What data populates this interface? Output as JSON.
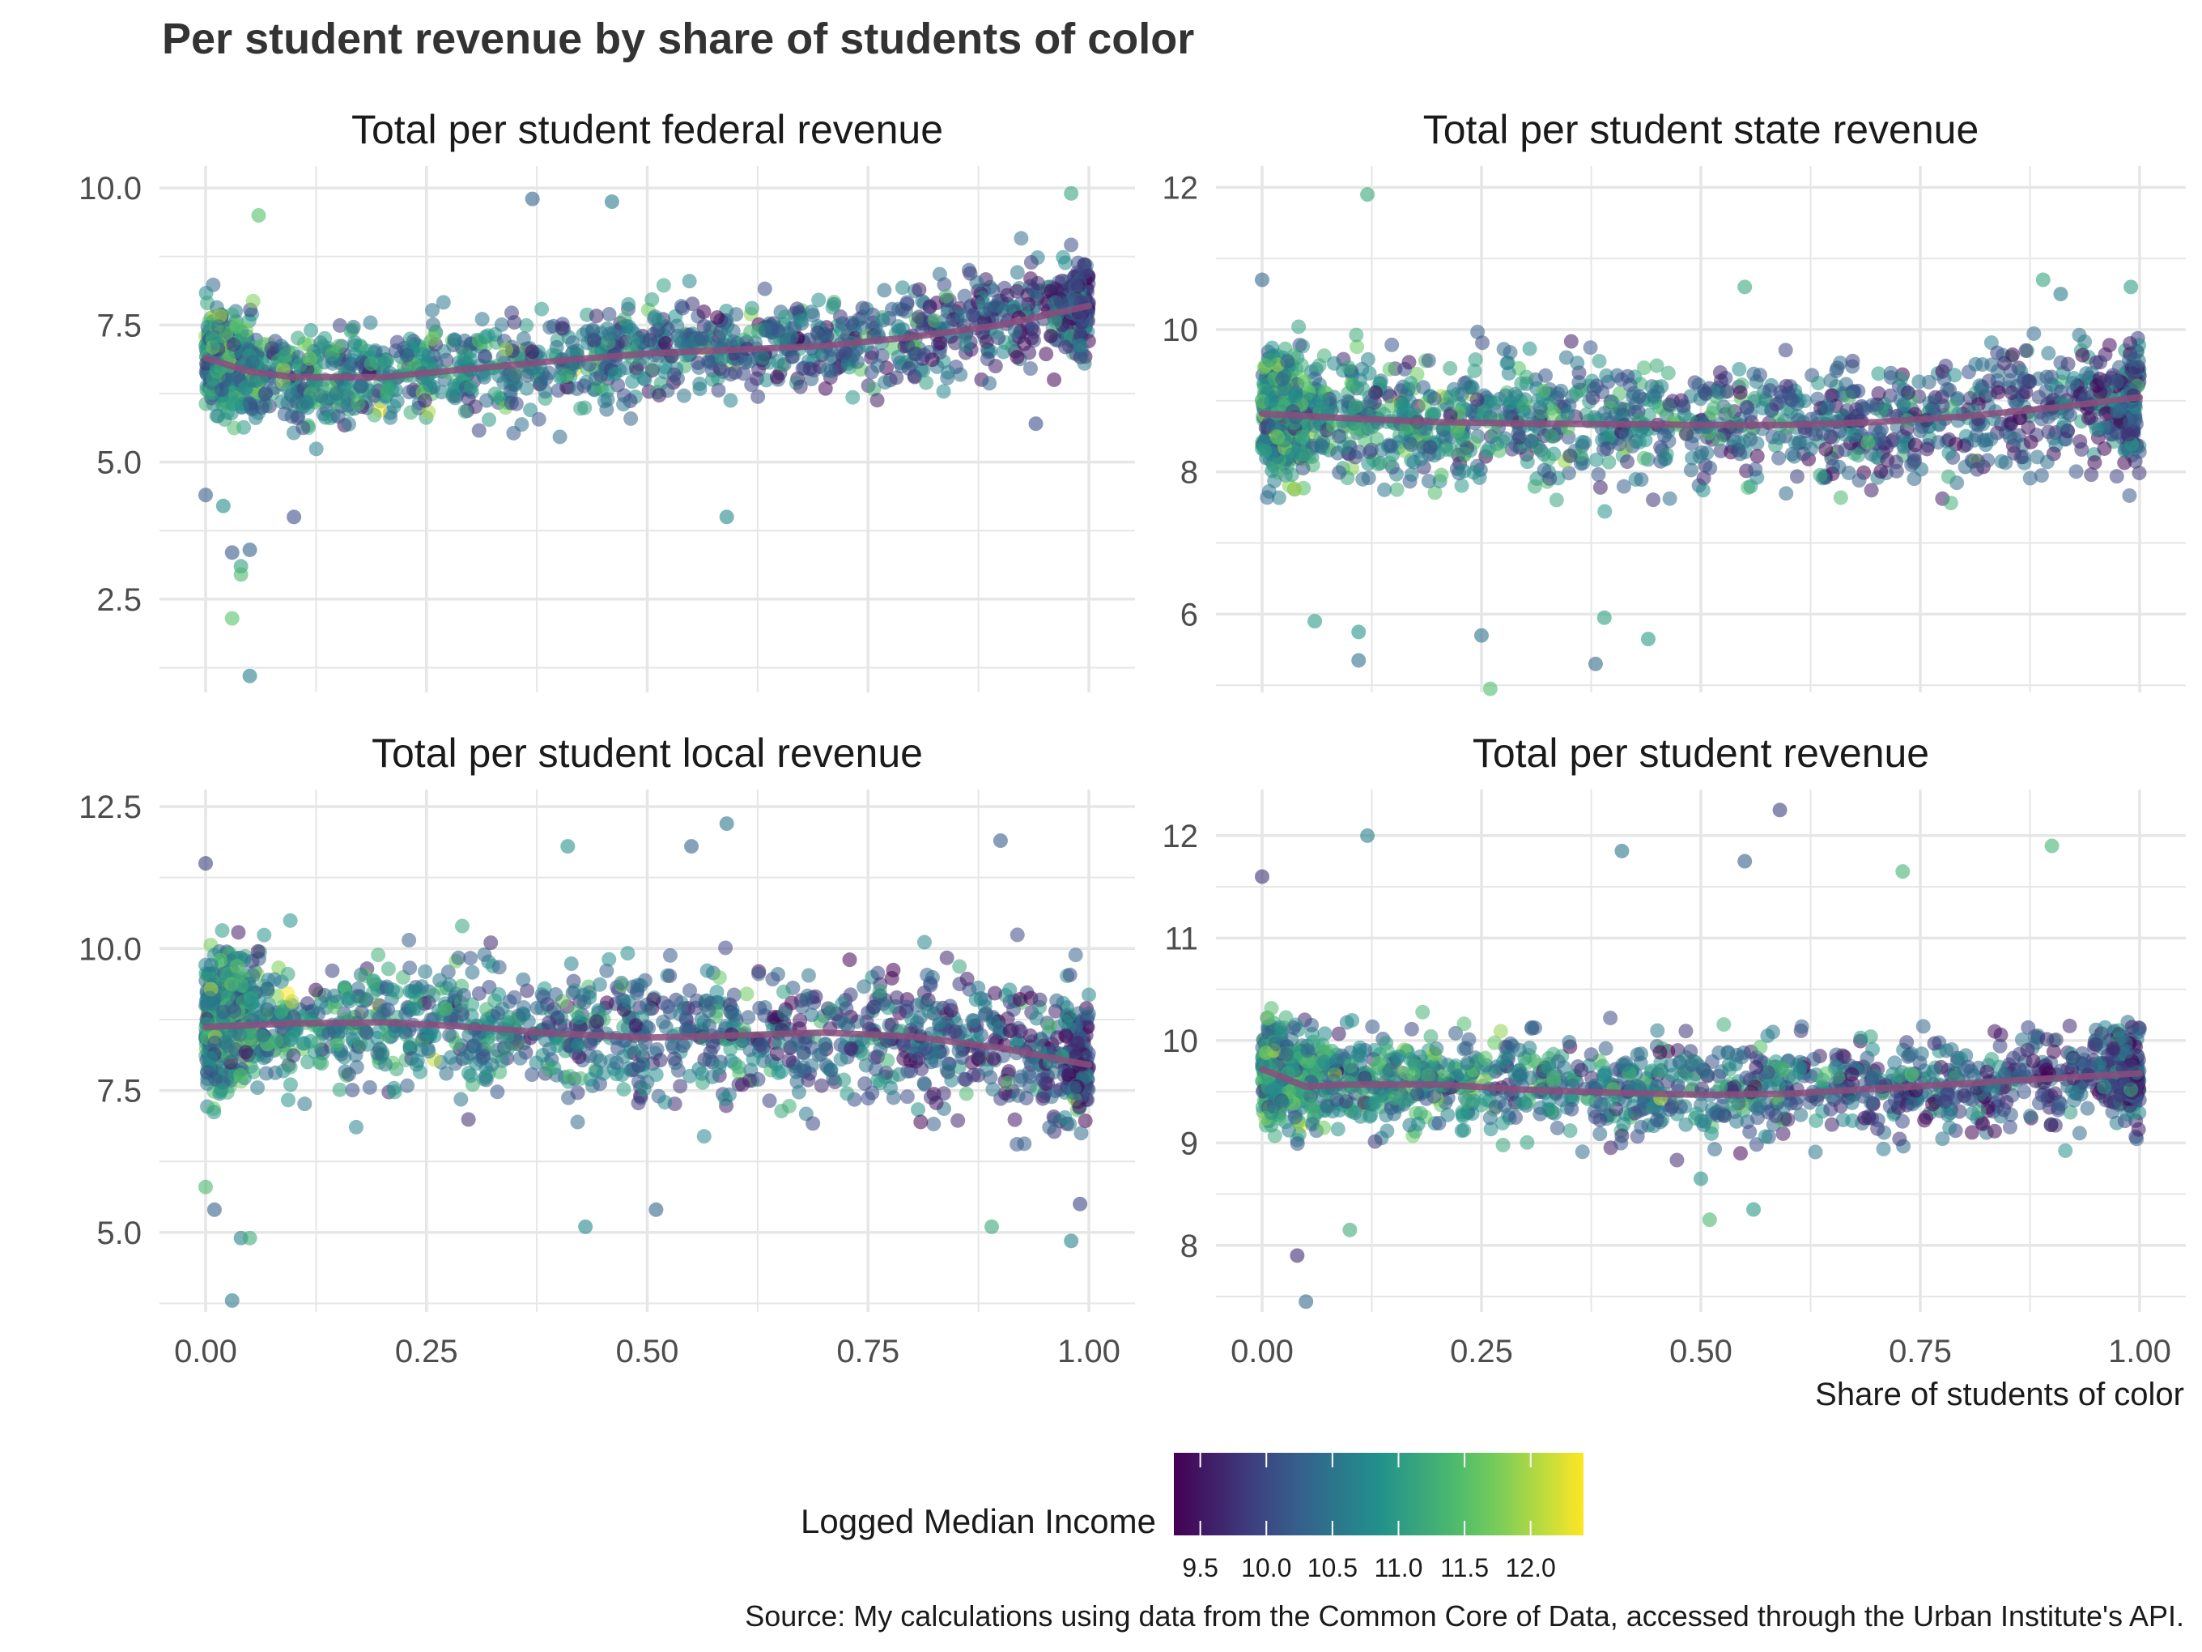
{
  "chart_data": {
    "type": "scatter",
    "title": "Per student revenue by share of students of color",
    "xlabel": "Share of students of color",
    "x_ticks": [
      "0.00",
      "0.25",
      "0.50",
      "0.75",
      "1.00"
    ],
    "legend": {
      "title": "Logged Median Income",
      "ticks": [
        "9.5",
        "10.0",
        "10.5",
        "11.0",
        "11.5",
        "12.0"
      ],
      "range": [
        9.3,
        12.4
      ],
      "position": "bottom"
    },
    "caption": "Source: My calculations using data from the Common Core of Data, accessed through the Urban Institute's API.",
    "colors": {
      "smooth_line": "#8b4d7d",
      "grid": "#e6e6e6",
      "text": "#333333",
      "viridis": [
        "#440154",
        "#3b528b",
        "#21908c",
        "#5dc863",
        "#fde725"
      ]
    },
    "grid": true,
    "panels": [
      {
        "title": "Total per student federal revenue",
        "ylim": [
          0.8,
          10.4
        ],
        "y_ticks": [
          "2.5",
          "5.0",
          "7.5",
          "10.0"
        ],
        "y_tick_values": [
          2.5,
          5.0,
          7.5,
          10.0
        ],
        "band": {
          "center_x": [
            0,
            0.1,
            0.25,
            0.5,
            0.75,
            1.0
          ],
          "center_y": [
            6.9,
            6.55,
            6.6,
            7.0,
            7.2,
            7.85
          ],
          "spread": 0.8
        },
        "smooth": {
          "x": [
            0,
            0.05,
            0.1,
            0.2,
            0.3,
            0.4,
            0.5,
            0.6,
            0.7,
            0.8,
            0.9,
            1.0
          ],
          "y": [
            6.9,
            6.65,
            6.55,
            6.55,
            6.7,
            6.85,
            6.98,
            7.05,
            7.12,
            7.28,
            7.5,
            7.85
          ]
        },
        "outliers": [
          [
            0.0,
            4.4
          ],
          [
            0.02,
            4.2
          ],
          [
            0.03,
            3.35
          ],
          [
            0.04,
            3.1
          ],
          [
            0.04,
            2.95
          ],
          [
            0.03,
            2.15
          ],
          [
            0.05,
            1.1
          ],
          [
            0.05,
            3.4
          ],
          [
            0.06,
            9.5
          ],
          [
            0.1,
            4.0
          ],
          [
            0.59,
            4.0
          ],
          [
            0.37,
            9.8
          ],
          [
            0.46,
            9.75
          ],
          [
            0.98,
            9.9
          ],
          [
            0.94,
            5.7
          ]
        ]
      },
      {
        "title": "Total per student state revenue",
        "ylim": [
          4.9,
          12.3
        ],
        "y_ticks": [
          "6",
          "8",
          "10",
          "12"
        ],
        "y_tick_values": [
          6,
          8,
          10,
          12
        ],
        "band": {
          "center_x": [
            0,
            0.25,
            0.5,
            0.75,
            1.0
          ],
          "center_y": [
            8.8,
            8.7,
            8.7,
            8.7,
            9.0
          ],
          "spread": 0.75
        },
        "smooth": {
          "x": [
            0,
            0.1,
            0.2,
            0.3,
            0.4,
            0.5,
            0.6,
            0.7,
            0.8,
            0.9,
            1.0
          ],
          "y": [
            8.82,
            8.75,
            8.7,
            8.68,
            8.67,
            8.66,
            8.66,
            8.7,
            8.78,
            8.9,
            9.05
          ]
        },
        "outliers": [
          [
            0.12,
            11.9
          ],
          [
            0.25,
            5.7
          ],
          [
            0.26,
            4.95
          ],
          [
            0.38,
            5.3
          ],
          [
            0.39,
            5.95
          ],
          [
            0.44,
            5.65
          ],
          [
            0.11,
            5.75
          ],
          [
            0.06,
            5.9
          ],
          [
            0.11,
            5.35
          ],
          [
            0.55,
            10.6
          ],
          [
            0.89,
            10.7
          ],
          [
            0.91,
            10.5
          ],
          [
            0.0,
            10.7
          ],
          [
            0.99,
            10.6
          ]
        ]
      },
      {
        "title": "Total per student local revenue",
        "ylim": [
          3.6,
          12.8
        ],
        "y_ticks": [
          "5.0",
          "7.5",
          "10.0",
          "12.5"
        ],
        "y_tick_values": [
          5.0,
          7.5,
          10.0,
          12.5
        ],
        "band": {
          "center_x": [
            0,
            0.2,
            0.4,
            0.6,
            0.75,
            0.9,
            1.0
          ],
          "center_y": [
            8.7,
            8.75,
            8.55,
            8.45,
            8.5,
            8.3,
            8.0
          ],
          "spread": 1.05
        },
        "smooth": {
          "x": [
            0,
            0.1,
            0.2,
            0.3,
            0.4,
            0.5,
            0.6,
            0.7,
            0.8,
            0.9,
            1.0
          ],
          "y": [
            8.62,
            8.68,
            8.7,
            8.62,
            8.5,
            8.43,
            8.47,
            8.52,
            8.45,
            8.25,
            7.95
          ]
        },
        "outliers": [
          [
            0.03,
            3.8
          ],
          [
            0.04,
            4.9
          ],
          [
            0.05,
            4.9
          ],
          [
            0.0,
            5.8
          ],
          [
            0.01,
            5.4
          ],
          [
            0.0,
            11.5
          ],
          [
            0.59,
            12.2
          ],
          [
            0.9,
            11.9
          ],
          [
            0.41,
            11.8
          ],
          [
            0.98,
            4.85
          ],
          [
            0.99,
            5.5
          ],
          [
            0.43,
            5.1
          ],
          [
            0.51,
            5.4
          ],
          [
            0.89,
            5.1
          ],
          [
            0.55,
            11.8
          ]
        ]
      },
      {
        "title": "Total per student revenue",
        "ylim": [
          7.35,
          12.45
        ],
        "y_ticks": [
          "8",
          "9",
          "10",
          "11",
          "12"
        ],
        "y_tick_values": [
          8,
          9,
          10,
          11,
          12
        ],
        "band": {
          "center_x": [
            0,
            0.1,
            0.25,
            0.5,
            0.75,
            1.0
          ],
          "center_y": [
            9.7,
            9.6,
            9.6,
            9.5,
            9.55,
            9.65
          ],
          "spread": 0.42
        },
        "smooth": {
          "x": [
            0,
            0.05,
            0.1,
            0.2,
            0.3,
            0.4,
            0.5,
            0.6,
            0.7,
            0.8,
            0.9,
            1.0
          ],
          "y": [
            9.72,
            9.55,
            9.57,
            9.57,
            9.52,
            9.49,
            9.47,
            9.48,
            9.53,
            9.58,
            9.63,
            9.68
          ]
        },
        "outliers": [
          [
            0.04,
            7.9
          ],
          [
            0.05,
            7.45
          ],
          [
            0.1,
            8.15
          ],
          [
            0.12,
            12.0
          ],
          [
            0.59,
            12.25
          ],
          [
            0.9,
            11.9
          ],
          [
            0.41,
            11.85
          ],
          [
            0.0,
            11.6
          ],
          [
            0.51,
            8.25
          ],
          [
            0.5,
            8.65
          ],
          [
            0.56,
            8.35
          ],
          [
            0.55,
            11.75
          ],
          [
            0.73,
            11.65
          ]
        ]
      }
    ]
  }
}
